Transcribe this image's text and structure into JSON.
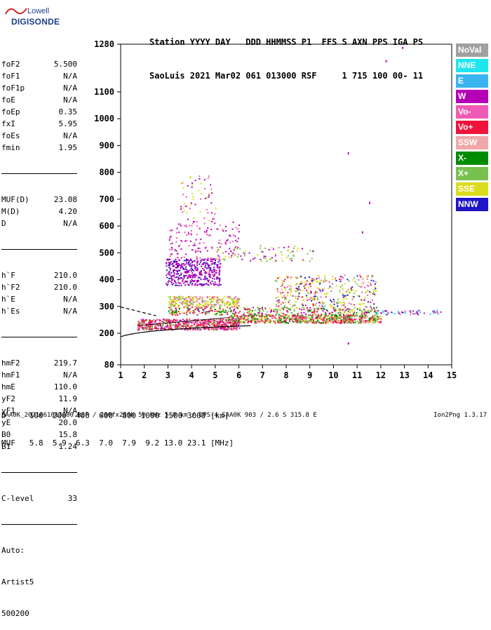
{
  "logo": {
    "line1": "Lowell",
    "line2": "DIGISONDE"
  },
  "header": {
    "line1": "Station YYYY DAY   DDD HHMMSS P1  FFS S AXN PPS IGA PS",
    "line2": "SaoLuis 2021 Mar02 061 013000 RSF     1 715 100 00- 11"
  },
  "params": {
    "group1": [
      {
        "k": "foF2",
        "v": "5.500"
      },
      {
        "k": "foF1",
        "v": "N/A"
      },
      {
        "k": "foF1p",
        "v": "N/A"
      },
      {
        "k": "foE",
        "v": "N/A"
      },
      {
        "k": "foEp",
        "v": "0.35"
      },
      {
        "k": "fxI",
        "v": "5.95"
      },
      {
        "k": "foEs",
        "v": "N/A"
      },
      {
        "k": "fmin",
        "v": "1.95"
      }
    ],
    "group2": [
      {
        "k": "MUF(D)",
        "v": "23.08"
      },
      {
        "k": "M(D)",
        "v": "4.20"
      },
      {
        "k": "D",
        "v": "N/A"
      }
    ],
    "group3": [
      {
        "k": "h`F",
        "v": "210.0"
      },
      {
        "k": "h`F2",
        "v": "210.0"
      },
      {
        "k": "h`E",
        "v": "N/A"
      },
      {
        "k": "h`Es",
        "v": "N/A"
      }
    ],
    "group4": [
      {
        "k": "hmF2",
        "v": "219.7"
      },
      {
        "k": "hmF1",
        "v": "N/A"
      },
      {
        "k": "hmE",
        "v": "110.0"
      },
      {
        "k": "yF2",
        "v": "11.9"
      },
      {
        "k": "yF1",
        "v": "N/A"
      },
      {
        "k": "yE",
        "v": "20.0"
      },
      {
        "k": "B0",
        "v": "15.8"
      },
      {
        "k": "B1",
        "v": "1.24"
      }
    ],
    "clevel": {
      "k": "C-level",
      "v": "33"
    },
    "auto": [
      "Auto:",
      "Artist5",
      "500200"
    ]
  },
  "legend": [
    {
      "label": "NoVal",
      "color": "#a0a0a0",
      "text": "#ffffff"
    },
    {
      "label": "NNE",
      "color": "#1ee6f0",
      "text": "#ffffff"
    },
    {
      "label": "E",
      "color": "#3ab4f0",
      "text": "#ffffff"
    },
    {
      "label": "W",
      "color": "#b400b4",
      "text": "#ffffff"
    },
    {
      "label": "Vo-",
      "color": "#f05ab4",
      "text": "#ffffff"
    },
    {
      "label": "Vo+",
      "color": "#f0143c",
      "text": "#ffffff"
    },
    {
      "label": "SSW",
      "color": "#f0a8a8",
      "text": "#ffffff"
    },
    {
      "label": "X-",
      "color": "#008c00",
      "text": "#ffffff"
    },
    {
      "label": "X+",
      "color": "#78c050",
      "text": "#ffffff"
    },
    {
      "label": "SSE",
      "color": "#dcdc1e",
      "text": "#ffffff"
    },
    {
      "label": "NNW",
      "color": "#1e14c8",
      "text": "#ffffff"
    }
  ],
  "chart_data": {
    "type": "scatter",
    "x_ticks": [
      "1",
      "2",
      "3",
      "4",
      "5",
      "6",
      "7",
      "8",
      "9",
      "10",
      "11",
      "12",
      "13",
      "14",
      "15"
    ],
    "y_ticks": [
      "80",
      "200",
      "300",
      "400",
      "500",
      "600",
      "700",
      "800",
      "900",
      "1000",
      "1100",
      "1280"
    ],
    "xlim": [
      1,
      15
    ],
    "ylim": [
      80,
      1280
    ],
    "grid": false
  },
  "muf_table": {
    "line1": "D     100  200  400  600  800 1000 1500 3000 [km]",
    "line2": "MUF   5.8  5.9  6.3  7.0  7.9  9.2 13.0 23.1 [MHz]"
  },
  "footer": "SAA0K_2021061013000.RSF / 280fx256h 50 kHz 5.0 km / DPS-4 SAA0K 903 / 2.6 S 315.8 E",
  "version": "Ion2Png 1.3.17"
}
